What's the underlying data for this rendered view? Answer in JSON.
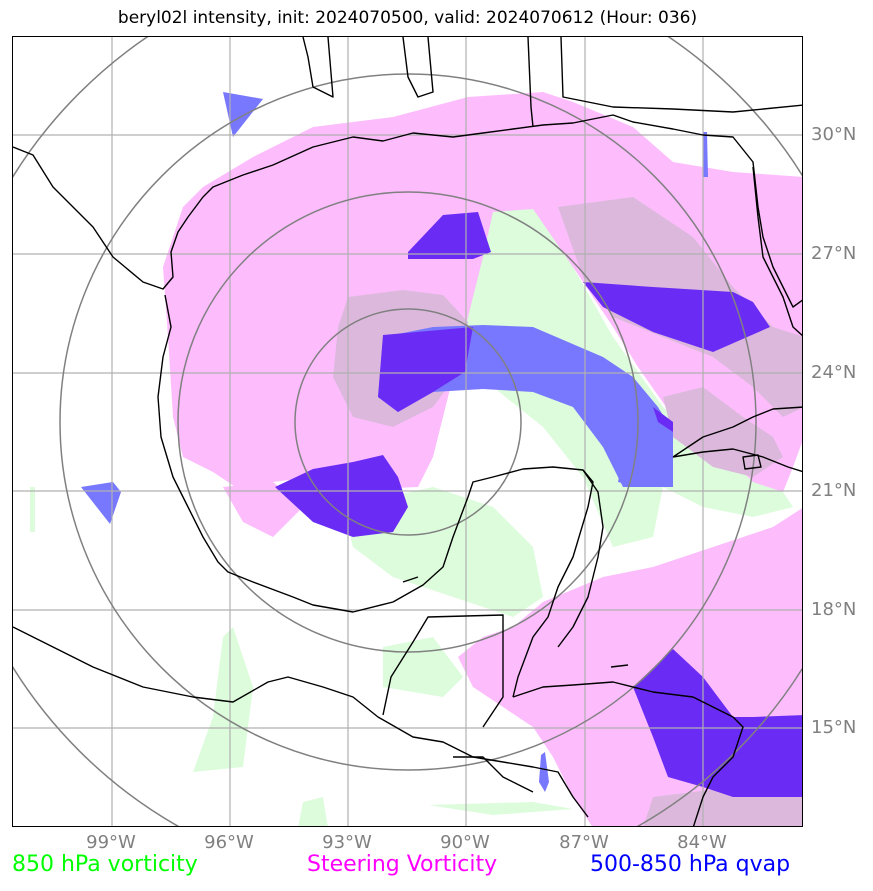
{
  "title": "beryl02l intensity, init: 2024070500, valid: 2024070612 (Hour: 036)",
  "lat_labels": [
    "30°N",
    "27°N",
    "24°N",
    "21°N",
    "18°N",
    "15°N"
  ],
  "lon_labels": [
    "99°W",
    "96°W",
    "93°W",
    "90°W",
    "87°W",
    "84°W"
  ],
  "legend": [
    {
      "label": "850 hPa vorticity",
      "color": "#00ff00"
    },
    {
      "label": "Steering Vorticity",
      "color": "#ff00ff"
    },
    {
      "label": "500-850 hPa qvap",
      "color": "#0000ff"
    }
  ],
  "colors": {
    "vorticity_850_fill": "#dcfcdc",
    "steering_vorticity_fill": "#fdbdfd",
    "qvap_fill": "#7878ff",
    "overlap_fill": "#dcb9dc",
    "overlap_qvap_fill": "#6a2cf5",
    "gridline": "#b0b0b0",
    "range_ring": "#808080",
    "coastline": "#000000"
  }
}
